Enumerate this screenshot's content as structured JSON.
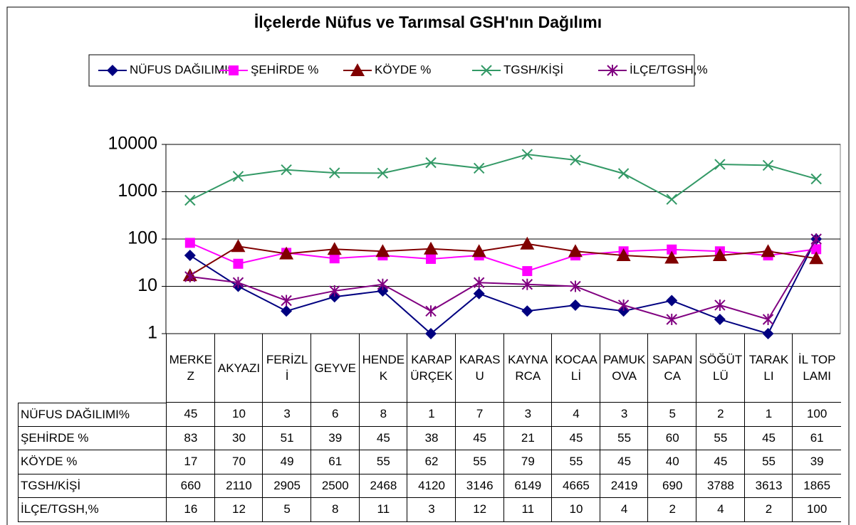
{
  "chart_data": {
    "type": "line",
    "title": "İlçelerde Nüfus ve Tarımsal GSH'nın Dağılımı",
    "categories": [
      "MERKEZ",
      "AKYAZI",
      "FERİZLİ",
      "GEYVE",
      "HENDEK",
      "KARAPÜRÇEK",
      "KARASU",
      "KAYNARCA",
      "KOCAALİ",
      "PAMUKOVA",
      "SAPANCA",
      "SÖĞÜTLÜ",
      "TARAKLI",
      "İL TOPLAMI"
    ],
    "series": [
      {
        "name": "NÜFUS DAĞILIMI%",
        "color": "#000080",
        "marker": "diamond",
        "values": [
          45,
          10,
          3,
          6,
          8,
          1,
          7,
          3,
          4,
          3,
          5,
          2,
          1,
          100
        ]
      },
      {
        "name": "ŞEHİRDE %",
        "color": "#ff00ff",
        "marker": "square",
        "values": [
          83,
          30,
          51,
          39,
          45,
          38,
          45,
          21,
          45,
          55,
          60,
          55,
          45,
          61
        ]
      },
      {
        "name": "KÖYDE %",
        "color": "#800000",
        "marker": "triangle",
        "values": [
          17,
          70,
          49,
          61,
          55,
          62,
          55,
          79,
          55,
          45,
          40,
          45,
          55,
          39
        ]
      },
      {
        "name": "TGSH/KİŞİ",
        "color": "#339966",
        "marker": "x",
        "values": [
          660,
          2110,
          2905,
          2500,
          2468,
          4120,
          3146,
          6149,
          4665,
          2419,
          690,
          3788,
          3613,
          1865
        ]
      },
      {
        "name": "İLÇE/TGSH,%",
        "color": "#800080",
        "marker": "star",
        "values": [
          16,
          12,
          5,
          8,
          11,
          3,
          12,
          11,
          10,
          4,
          2,
          4,
          2,
          100
        ]
      }
    ],
    "ylim": [
      1,
      10000
    ],
    "yticks": [
      1,
      10,
      100,
      1000,
      10000
    ],
    "yscale": "log",
    "grid": true
  }
}
